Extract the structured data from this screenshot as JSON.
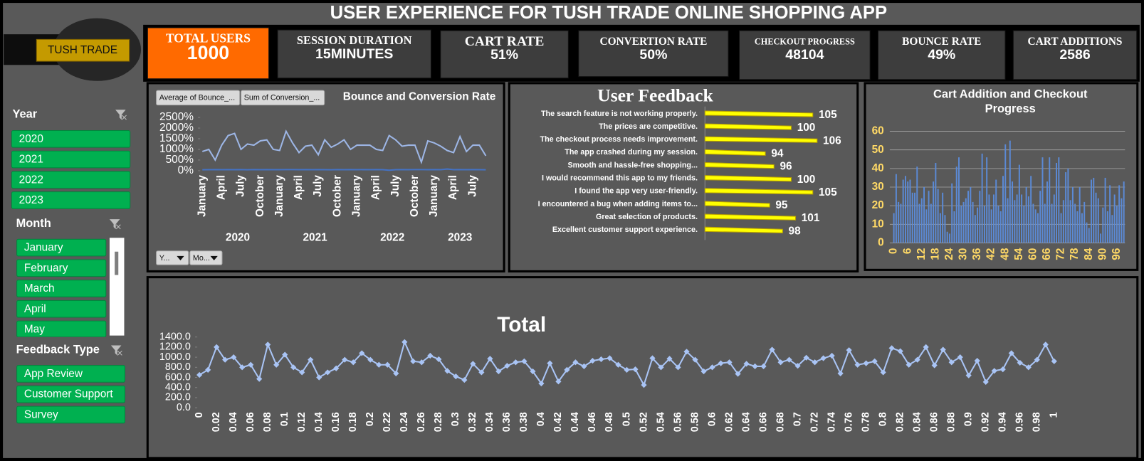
{
  "title": "USER EXPERIENCE FOR TUSH TRADE ONLINE SHOPPING APP",
  "logo": "TUSH TRADE",
  "kpis": [
    {
      "label": "TOTAL USERS",
      "value": "1000"
    },
    {
      "label": "SESSION DURATION",
      "value": "15MINUTES"
    },
    {
      "label": "CART RATE",
      "value": "51%"
    },
    {
      "label": "CONVERTION RATE",
      "value": "50%"
    },
    {
      "label": "CHECKOUT PROGRESS",
      "value": "48104"
    },
    {
      "label": "BOUNCE RATE",
      "value": "49%"
    },
    {
      "label": "CART ADDITIONS",
      "value": "2586"
    }
  ],
  "slicers": [
    {
      "title": "Year",
      "items": [
        "2020",
        "2021",
        "2022",
        "2023"
      ]
    },
    {
      "title": "Month",
      "items": [
        "January",
        "February",
        "March",
        "April",
        "May"
      ]
    },
    {
      "title": "Feedback Type",
      "items": [
        "App Review",
        "Customer Support",
        "Survey"
      ]
    }
  ],
  "chart_data": [
    {
      "type": "line",
      "title": "Bounce and Conversion Rate",
      "filter_buttons": [
        "Y...",
        "Mo..."
      ],
      "categories": [
        "January",
        null,
        null,
        "April",
        null,
        null,
        "July",
        null,
        null,
        "October",
        null,
        null,
        "January",
        null,
        null,
        "April",
        null,
        null,
        "July",
        null,
        null,
        "October",
        null,
        null,
        "January",
        null,
        null,
        "April",
        null,
        null,
        "July",
        null,
        null,
        "October",
        null,
        null,
        "January",
        null,
        null,
        "April",
        null,
        null,
        "July",
        null,
        null
      ],
      "groups": [
        "2020",
        "2021",
        "2022",
        "2023"
      ],
      "series": [
        {
          "name": "Average of Bounce_...",
          "color": "#9db6e6",
          "values": [
            900,
            1000,
            500,
            1200,
            1650,
            1750,
            1000,
            1250,
            1200,
            1400,
            1450,
            1000,
            950,
            1850,
            1300,
            850,
            1150,
            1200,
            750,
            1450,
            1100,
            1250,
            1450,
            1000,
            1200,
            1200,
            1200,
            1000,
            950,
            1650,
            1450,
            1150,
            1200,
            1200,
            400,
            1400,
            1300,
            1150,
            950,
            850,
            1600,
            900,
            1200,
            1200,
            700
          ]
        },
        {
          "name": "Sum of Conversion_...",
          "color": "#4472c4",
          "values": [
            45,
            48,
            50,
            47,
            52,
            49,
            51,
            46,
            50,
            48,
            53,
            47,
            49,
            50,
            52,
            48,
            51,
            47,
            50,
            49,
            46,
            52,
            48,
            50,
            47,
            51,
            49,
            50,
            48,
            20,
            49,
            52,
            47,
            50,
            51,
            48,
            50,
            49,
            80,
            47,
            51,
            48,
            50,
            49,
            46
          ]
        }
      ],
      "ylim": [
        0,
        2500
      ],
      "yticks": [
        {
          "value": 0,
          "label": "0%"
        },
        {
          "value": 500,
          "label": "500%"
        },
        {
          "value": 1000,
          "label": "1000%"
        },
        {
          "value": 1500,
          "label": "1500%"
        },
        {
          "value": 2000,
          "label": "2000%"
        },
        {
          "value": 2500,
          "label": "2500%"
        }
      ],
      "grid": false
    },
    {
      "type": "hbar",
      "title": "User Feedback",
      "categories": [
        "The search feature is not working properly.",
        "The prices are competitive.",
        "The checkout process needs improvement.",
        "The app crashed during my session.",
        "Smooth and hassle-free shopping...",
        "I would recommend this app to my friends.",
        "I found the app very user-friendly.",
        "I encountered a bug when adding items to...",
        "Great selection of products.",
        "Excellent customer support experience."
      ],
      "values": [
        105,
        100,
        106,
        94,
        96,
        100,
        105,
        95,
        101,
        98
      ],
      "color": "#ffff00",
      "xlim": [
        80,
        112
      ]
    },
    {
      "type": "bar",
      "title": "Cart Addition  and Checkout Progress",
      "categories": [
        "0",
        null,
        null,
        null,
        null,
        null,
        "6",
        null,
        null,
        null,
        null,
        null,
        "12",
        null,
        null,
        null,
        null,
        null,
        "18",
        null,
        null,
        null,
        null,
        null,
        "24",
        null,
        null,
        null,
        null,
        null,
        "30",
        null,
        null,
        null,
        null,
        null,
        "36",
        null,
        null,
        null,
        null,
        null,
        "42",
        null,
        null,
        null,
        null,
        null,
        "48",
        null,
        null,
        null,
        null,
        null,
        "54",
        null,
        null,
        null,
        null,
        null,
        "60",
        null,
        null,
        null,
        null,
        null,
        "66",
        null,
        null,
        null,
        null,
        null,
        "72",
        null,
        null,
        null,
        null,
        null,
        "78",
        null,
        null,
        null,
        null,
        null,
        "84",
        null,
        null,
        null,
        null,
        null,
        "90",
        null,
        null,
        null,
        null,
        null,
        "96",
        null,
        null,
        null
      ],
      "values": [
        16,
        37,
        22,
        21,
        34,
        36,
        33,
        34,
        27,
        27,
        41,
        21,
        24,
        30,
        18,
        28,
        21,
        33,
        43,
        29,
        16,
        27,
        15,
        6,
        5,
        32,
        17,
        41,
        46,
        20,
        22,
        24,
        28,
        30,
        22,
        15,
        19,
        28,
        48,
        20,
        46,
        26,
        18,
        26,
        34,
        20,
        17,
        36,
        53,
        24,
        55,
        33,
        23,
        26,
        42,
        26,
        20,
        30,
        25,
        36,
        21,
        18,
        16,
        28,
        46,
        21,
        33,
        46,
        21,
        26,
        43,
        46,
        16,
        23,
        38,
        40,
        23,
        30,
        21,
        17,
        30,
        16,
        22,
        11,
        8,
        34,
        35,
        27,
        24,
        5,
        19,
        35,
        17,
        31,
        15,
        26,
        20,
        31,
        24,
        33
      ],
      "color": "#5b8ad6",
      "ylim": [
        0,
        60
      ],
      "yticks": [
        0,
        10,
        20,
        30,
        40,
        50,
        60
      ],
      "grid": true
    },
    {
      "type": "line",
      "title": "Total",
      "categories": [
        "0",
        null,
        "0.02",
        null,
        "0.04",
        null,
        "0.06",
        null,
        "0.08",
        null,
        "0.1",
        null,
        "0.12",
        null,
        "0.14",
        null,
        "0.16",
        null,
        "0.18",
        null,
        "0.2",
        null,
        "0.22",
        null,
        "0.24",
        null,
        "0.26",
        null,
        "0.28",
        null,
        "0.3",
        null,
        "0.32",
        null,
        "0.34",
        null,
        "0.36",
        null,
        "0.38",
        null,
        "0.4",
        null,
        "0.42",
        null,
        "0.44",
        null,
        "0.46",
        null,
        "0.48",
        null,
        "0.5",
        null,
        "0.52",
        null,
        "0.54",
        null,
        "0.56",
        null,
        "0.58",
        null,
        "0.6",
        null,
        "0.62",
        null,
        "0.64",
        null,
        "0.66",
        null,
        "0.68",
        null,
        "0.7",
        null,
        "0.72",
        null,
        "0.74",
        null,
        "0.76",
        null,
        "0.78",
        null,
        "0.8",
        null,
        "0.82",
        null,
        "0.84",
        null,
        "0.86",
        null,
        "0.88",
        null,
        "0.9",
        null,
        "0.92",
        null,
        "0.94",
        null,
        "0.96",
        null,
        "0.98",
        null,
        "1"
      ],
      "values": [
        650,
        750,
        1200,
        950,
        1000,
        800,
        850,
        570,
        1250,
        850,
        1050,
        800,
        700,
        950,
        600,
        700,
        780,
        950,
        900,
        1080,
        950,
        850,
        850,
        680,
        1300,
        920,
        900,
        1030,
        960,
        730,
        620,
        550,
        870,
        700,
        970,
        720,
        830,
        900,
        920,
        720,
        480,
        880,
        520,
        750,
        900,
        820,
        930,
        960,
        980,
        850,
        750,
        760,
        450,
        980,
        800,
        970,
        800,
        1110,
        950,
        720,
        800,
        880,
        900,
        670,
        870,
        820,
        820,
        1150,
        900,
        950,
        830,
        990,
        900,
        980,
        1030,
        680,
        1140,
        850,
        880,
        920,
        700,
        1180,
        1120,
        850,
        950,
        1200,
        840,
        1150,
        900,
        1000,
        640,
        930,
        510,
        730,
        760,
        1080,
        890,
        800,
        950,
        1250,
        920
      ],
      "color": "#a9c4f5",
      "markers": true,
      "ylim": [
        0,
        1400
      ],
      "yticks": [
        {
          "value": 0,
          "label": "0.0"
        },
        {
          "value": 200,
          "label": "200.0"
        },
        {
          "value": 400,
          "label": "400.0"
        },
        {
          "value": 600,
          "label": "600.0"
        },
        {
          "value": 800,
          "label": "800.0"
        },
        {
          "value": 1000,
          "label": "1000.0"
        },
        {
          "value": 1200,
          "label": "1200.0"
        },
        {
          "value": 1400,
          "label": "1400.0"
        }
      ],
      "grid": false
    }
  ]
}
